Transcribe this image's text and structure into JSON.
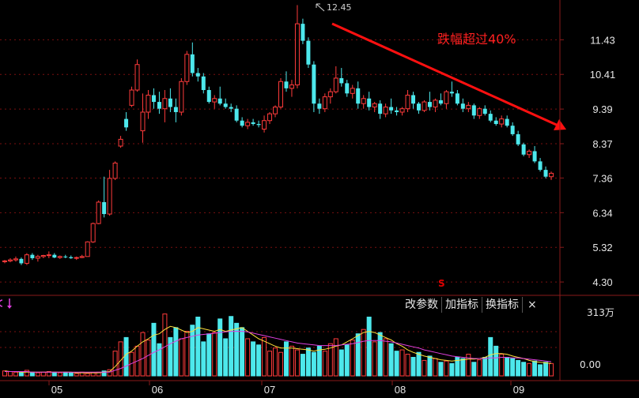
{
  "chart_data": {
    "type": "candlestick",
    "y_ticks": [
      "11.43",
      "10.41",
      "9.39",
      "8.37",
      "7.36",
      "6.34",
      "5.32",
      "4.30"
    ],
    "x_ticks": [
      "05",
      "06",
      "07",
      "08",
      "09"
    ],
    "high_label": "12.45",
    "annotation": "跌幅超过40%",
    "volume_ticks": [
      "313万",
      "0.00"
    ],
    "ylim": [
      4.0,
      12.6
    ],
    "grid": true,
    "candles": [
      [
        4.9,
        4.95,
        4.85,
        4.92
      ],
      [
        4.92,
        5.0,
        4.88,
        4.95
      ],
      [
        4.95,
        5.05,
        4.9,
        4.98
      ],
      [
        4.98,
        5.02,
        4.8,
        4.85
      ],
      [
        4.85,
        5.15,
        4.8,
        5.1
      ],
      [
        5.1,
        5.15,
        4.95,
        5.0
      ],
      [
        5.0,
        5.1,
        4.9,
        5.05
      ],
      [
        5.05,
        5.1,
        5.0,
        5.08
      ],
      [
        5.08,
        5.2,
        5.0,
        5.1
      ],
      [
        5.1,
        5.15,
        5.0,
        5.02
      ],
      [
        5.02,
        5.08,
        4.98,
        5.05
      ],
      [
        5.05,
        5.1,
        5.0,
        5.03
      ],
      [
        5.03,
        5.08,
        4.98,
        5.0
      ],
      [
        5.0,
        5.05,
        4.95,
        5.02
      ],
      [
        5.02,
        5.1,
        5.0,
        5.05
      ],
      [
        5.05,
        5.5,
        5.05,
        5.48
      ],
      [
        5.48,
        6.05,
        5.45,
        6.02
      ],
      [
        6.02,
        6.7,
        6.0,
        6.65
      ],
      [
        6.65,
        7.4,
        6.2,
        6.3
      ],
      [
        6.3,
        7.6,
        6.25,
        7.35
      ],
      [
        7.35,
        7.85,
        7.3,
        7.8
      ],
      [
        8.3,
        8.6,
        8.25,
        8.5
      ],
      [
        9.1,
        9.3,
        8.75,
        8.85
      ],
      [
        9.5,
        10.05,
        9.45,
        9.95
      ],
      [
        9.95,
        10.85,
        9.9,
        10.7
      ],
      [
        8.75,
        9.85,
        8.4,
        9.3
      ],
      [
        9.3,
        9.95,
        9.1,
        9.8
      ],
      [
        9.8,
        10.0,
        9.4,
        9.6
      ],
      [
        9.6,
        9.9,
        9.25,
        9.4
      ],
      [
        9.4,
        9.95,
        9.0,
        9.7
      ],
      [
        9.7,
        10.0,
        9.3,
        9.45
      ],
      [
        9.45,
        9.7,
        9.0,
        9.3
      ],
      [
        9.3,
        10.3,
        9.2,
        10.2
      ],
      [
        10.2,
        11.1,
        10.1,
        11.0
      ],
      [
        11.0,
        11.35,
        10.35,
        10.45
      ],
      [
        10.45,
        10.6,
        10.2,
        10.35
      ],
      [
        10.35,
        10.45,
        9.85,
        9.95
      ],
      [
        9.95,
        10.05,
        9.55,
        9.6
      ],
      [
        9.6,
        9.8,
        9.4,
        9.7
      ],
      [
        9.7,
        10.05,
        9.5,
        9.55
      ],
      [
        9.55,
        9.7,
        9.4,
        9.45
      ],
      [
        9.45,
        9.55,
        9.3,
        9.4
      ],
      [
        9.4,
        9.5,
        9.0,
        9.05
      ],
      [
        9.05,
        9.15,
        8.85,
        8.9
      ],
      [
        8.9,
        9.1,
        8.8,
        9.0
      ],
      [
        9.0,
        9.1,
        8.9,
        8.95
      ],
      [
        8.95,
        9.05,
        8.85,
        8.92
      ],
      [
        8.8,
        9.2,
        8.7,
        9.05
      ],
      [
        9.05,
        9.3,
        8.95,
        9.25
      ],
      [
        9.25,
        9.5,
        9.15,
        9.45
      ],
      [
        9.45,
        10.3,
        9.4,
        10.2
      ],
      [
        10.2,
        10.5,
        9.9,
        10.0
      ],
      [
        10.0,
        10.25,
        9.75,
        10.1
      ],
      [
        10.1,
        12.45,
        10.0,
        11.9
      ],
      [
        11.9,
        12.05,
        11.3,
        11.4
      ],
      [
        11.4,
        11.5,
        10.6,
        10.7
      ],
      [
        10.7,
        10.8,
        9.3,
        9.55
      ],
      [
        9.55,
        9.7,
        9.25,
        9.4
      ],
      [
        9.4,
        9.85,
        9.3,
        9.75
      ],
      [
        9.75,
        10.0,
        9.55,
        9.9
      ],
      [
        9.9,
        10.65,
        9.85,
        10.3
      ],
      [
        10.3,
        10.6,
        10.05,
        10.15
      ],
      [
        10.15,
        10.25,
        9.75,
        9.85
      ],
      [
        9.85,
        10.1,
        9.7,
        10.0
      ],
      [
        10.0,
        10.2,
        9.4,
        9.55
      ],
      [
        9.55,
        9.8,
        9.4,
        9.7
      ],
      [
        9.7,
        9.9,
        9.35,
        9.45
      ],
      [
        9.45,
        9.6,
        9.3,
        9.55
      ],
      [
        9.55,
        9.65,
        9.1,
        9.25
      ],
      [
        9.25,
        9.55,
        9.15,
        9.45
      ],
      [
        9.45,
        9.7,
        9.25,
        9.35
      ],
      [
        9.35,
        9.45,
        9.2,
        9.3
      ],
      [
        9.3,
        9.45,
        9.2,
        9.4
      ],
      [
        9.4,
        9.95,
        9.3,
        9.8
      ],
      [
        9.8,
        9.9,
        9.4,
        9.55
      ],
      [
        9.55,
        9.6,
        9.25,
        9.35
      ],
      [
        9.35,
        9.65,
        9.3,
        9.6
      ],
      [
        9.6,
        9.9,
        9.35,
        9.45
      ],
      [
        9.45,
        9.7,
        9.3,
        9.65
      ],
      [
        9.65,
        9.85,
        9.5,
        9.55
      ],
      [
        9.55,
        9.95,
        9.4,
        9.9
      ],
      [
        9.9,
        10.2,
        9.75,
        9.85
      ],
      [
        9.85,
        9.95,
        9.5,
        9.55
      ],
      [
        9.55,
        9.7,
        9.3,
        9.4
      ],
      [
        9.4,
        9.6,
        9.3,
        9.5
      ],
      [
        9.5,
        9.55,
        9.1,
        9.2
      ],
      [
        9.2,
        9.45,
        9.1,
        9.4
      ],
      [
        9.4,
        9.5,
        9.2,
        9.25
      ],
      [
        9.25,
        9.35,
        9.0,
        9.05
      ],
      [
        9.05,
        9.15,
        8.9,
        8.95
      ],
      [
        8.95,
        9.2,
        8.85,
        9.1
      ],
      [
        9.1,
        9.2,
        8.85,
        8.9
      ],
      [
        8.9,
        9.0,
        8.6,
        8.65
      ],
      [
        8.65,
        8.75,
        8.3,
        8.35
      ],
      [
        8.35,
        8.4,
        8.0,
        8.05
      ],
      [
        8.05,
        8.2,
        7.95,
        8.15
      ],
      [
        8.15,
        8.3,
        7.8,
        7.85
      ],
      [
        7.85,
        7.95,
        7.55,
        7.6
      ],
      [
        7.6,
        7.7,
        7.35,
        7.4
      ],
      [
        7.4,
        7.55,
        7.3,
        7.5
      ]
    ],
    "volumes": [
      0.08,
      0.07,
      0.06,
      0.05,
      0.09,
      0.06,
      0.05,
      0.06,
      0.07,
      0.06,
      0.05,
      0.06,
      0.05,
      0.04,
      0.06,
      0.04,
      0.05,
      0.06,
      0.08,
      0.1,
      0.4,
      0.55,
      0.62,
      0.38,
      0.48,
      0.7,
      0.58,
      0.85,
      0.52,
      1.0,
      0.62,
      0.78,
      0.6,
      0.72,
      0.82,
      0.95,
      0.55,
      0.68,
      0.7,
      0.92,
      0.6,
      0.96,
      0.85,
      0.78,
      0.6,
      0.55,
      0.5,
      0.62,
      0.4,
      0.45,
      0.38,
      0.55,
      0.48,
      0.42,
      0.35,
      0.45,
      0.38,
      0.48,
      0.4,
      0.52,
      0.6,
      0.42,
      0.5,
      0.58,
      0.68,
      0.75,
      0.95,
      0.55,
      0.7,
      0.6,
      0.52,
      0.4,
      0.42,
      0.35,
      0.3,
      0.38,
      0.25,
      0.32,
      0.28,
      0.22,
      0.24,
      0.2,
      0.3,
      0.28,
      0.35,
      0.22,
      0.26,
      0.3,
      0.62,
      0.48,
      0.35,
      0.3,
      0.28,
      0.25,
      0.22,
      0.2,
      0.24,
      0.18,
      0.22,
      0.2
    ],
    "ma_short": [
      0.08,
      0.07,
      0.07,
      0.06,
      0.06,
      0.06,
      0.06,
      0.06,
      0.06,
      0.06,
      0.06,
      0.06,
      0.06,
      0.05,
      0.05,
      0.05,
      0.05,
      0.05,
      0.06,
      0.07,
      0.15,
      0.25,
      0.35,
      0.4,
      0.48,
      0.55,
      0.6,
      0.66,
      0.68,
      0.75,
      0.8,
      0.78,
      0.74,
      0.7,
      0.72,
      0.78,
      0.76,
      0.74,
      0.72,
      0.75,
      0.72,
      0.74,
      0.76,
      0.78,
      0.72,
      0.66,
      0.6,
      0.56,
      0.52,
      0.48,
      0.45,
      0.45,
      0.45,
      0.44,
      0.43,
      0.42,
      0.4,
      0.42,
      0.43,
      0.45,
      0.48,
      0.5,
      0.55,
      0.6,
      0.65,
      0.7,
      0.72,
      0.7,
      0.66,
      0.62,
      0.58,
      0.52,
      0.48,
      0.42,
      0.38,
      0.35,
      0.32,
      0.3,
      0.28,
      0.26,
      0.25,
      0.24,
      0.25,
      0.26,
      0.27,
      0.27,
      0.28,
      0.3,
      0.34,
      0.36,
      0.36,
      0.35,
      0.32,
      0.3,
      0.28,
      0.25,
      0.23,
      0.22,
      0.21,
      0.2
    ],
    "ma_long": [
      0.07,
      0.07,
      0.07,
      0.07,
      0.07,
      0.06,
      0.06,
      0.06,
      0.06,
      0.06,
      0.06,
      0.06,
      0.06,
      0.06,
      0.06,
      0.06,
      0.06,
      0.06,
      0.06,
      0.06,
      0.09,
      0.12,
      0.16,
      0.2,
      0.24,
      0.28,
      0.33,
      0.38,
      0.42,
      0.47,
      0.52,
      0.56,
      0.6,
      0.62,
      0.64,
      0.66,
      0.67,
      0.68,
      0.69,
      0.7,
      0.71,
      0.72,
      0.72,
      0.72,
      0.71,
      0.69,
      0.67,
      0.65,
      0.63,
      0.61,
      0.59,
      0.57,
      0.55,
      0.53,
      0.52,
      0.51,
      0.5,
      0.49,
      0.49,
      0.49,
      0.49,
      0.5,
      0.51,
      0.52,
      0.54,
      0.56,
      0.57,
      0.57,
      0.57,
      0.56,
      0.55,
      0.53,
      0.51,
      0.49,
      0.47,
      0.45,
      0.42,
      0.4,
      0.38,
      0.36,
      0.34,
      0.32,
      0.31,
      0.3,
      0.29,
      0.28,
      0.28,
      0.28,
      0.29,
      0.29,
      0.3,
      0.3,
      0.29,
      0.29,
      0.28,
      0.27,
      0.26,
      0.25,
      0.24,
      0.23
    ]
  },
  "toolbar": {
    "params": "改参数",
    "add_indicator": "加指标",
    "switch_indicator": "换指标",
    "close": "×"
  },
  "signal": "S",
  "colors": {
    "up": "#ff3b3b",
    "down": "#4de8ec",
    "grid": "#7a1010",
    "ma_short": "#ffe13a",
    "ma_long": "#e040e0",
    "axis_text": "#e6e6e6",
    "arrow": "#ff1010"
  }
}
